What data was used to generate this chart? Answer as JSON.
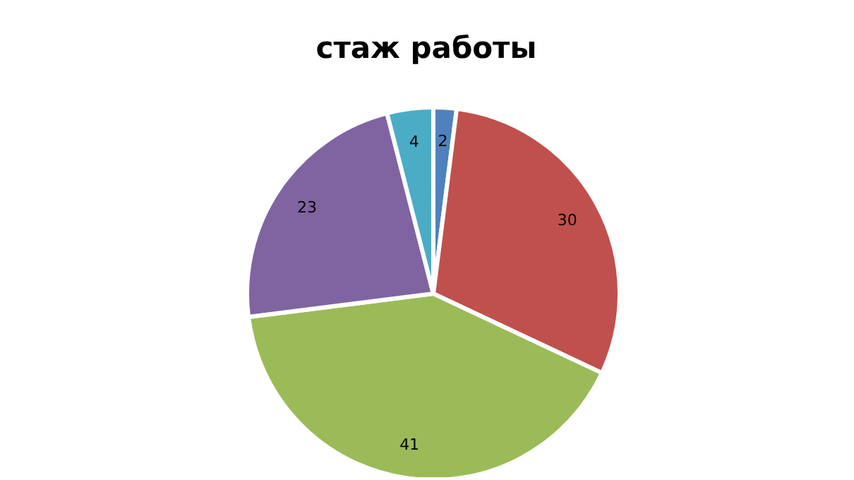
{
  "chart_data": {
    "type": "pie",
    "title": "стаж работы",
    "categories": [
      null,
      null,
      null,
      null,
      null
    ],
    "values": [
      2,
      30,
      41,
      23,
      4
    ],
    "colors": [
      "#4f81bd",
      "#c0504d",
      "#9bbb59",
      "#8064a2",
      "#4bacc6"
    ],
    "data_labels": true,
    "legend": false
  }
}
